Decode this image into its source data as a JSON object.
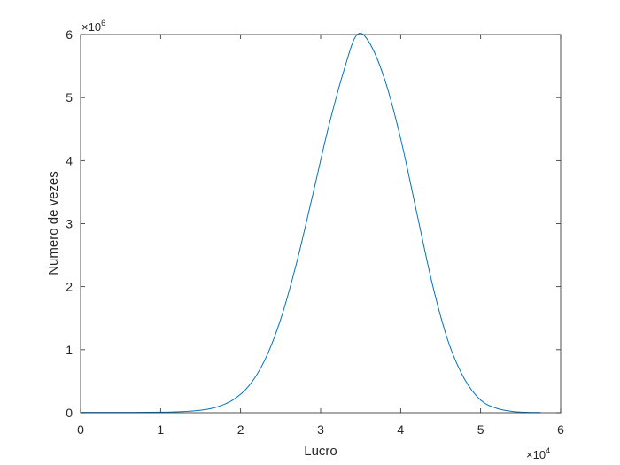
{
  "chart_data": {
    "type": "line",
    "xlabel": "Lucro",
    "ylabel": "Numero de vezes",
    "xlim": [
      0,
      60000
    ],
    "ylim": [
      0,
      6000000
    ],
    "x_ticks": [
      0,
      10000,
      20000,
      30000,
      40000,
      50000,
      60000
    ],
    "y_ticks": [
      0,
      1000000,
      2000000,
      3000000,
      4000000,
      5000000,
      6000000
    ],
    "x_tick_labels": [
      "0",
      "1",
      "2",
      "3",
      "4",
      "5",
      "6"
    ],
    "y_tick_labels": [
      "0",
      "1",
      "2",
      "3",
      "4",
      "5",
      "6"
    ],
    "x_exponent": {
      "base": "×10",
      "power": "4"
    },
    "y_exponent": {
      "base": "×10",
      "power": "6"
    },
    "grid": false,
    "line_color": "#0072BD",
    "series": [
      {
        "x": [
          0,
          5000,
          10000,
          13000,
          15000,
          17000,
          19000,
          21000,
          23000,
          25000,
          27000,
          29000,
          31000,
          33000,
          34500,
          36000,
          38000,
          40000,
          42000,
          44000,
          46000,
          48000,
          50000,
          52000,
          54000,
          56000,
          57500
        ],
        "values": [
          5000,
          5000,
          8000,
          20000,
          40000,
          90000,
          200000,
          420000,
          830000,
          1480000,
          2380000,
          3450000,
          4540000,
          5470000,
          5990000,
          5890000,
          5290000,
          4350000,
          3180000,
          2020000,
          1110000,
          530000,
          200000,
          70000,
          20000,
          5000,
          3000
        ]
      }
    ]
  }
}
